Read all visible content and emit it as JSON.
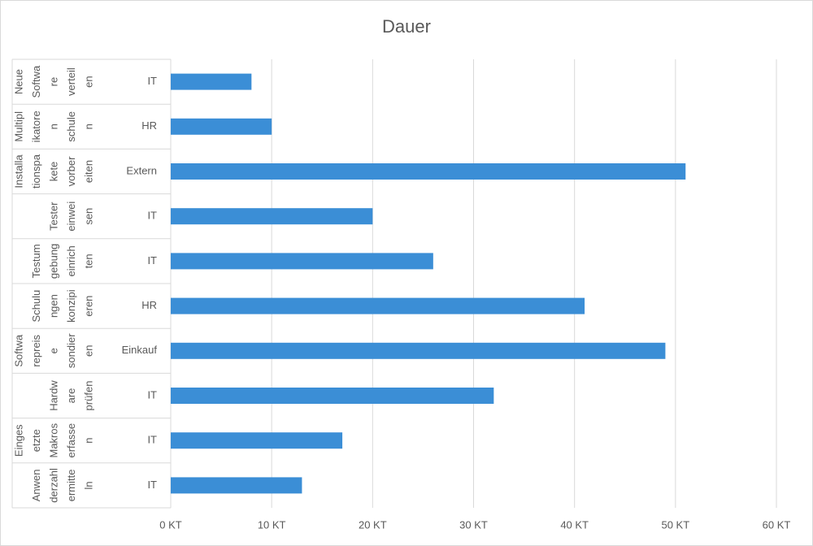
{
  "chart_data": {
    "type": "bar",
    "orientation": "horizontal",
    "title": "Dauer",
    "categories": [
      {
        "task": [
          "Neue",
          "Softwa",
          "re",
          "verteil",
          "en"
        ],
        "group": "IT"
      },
      {
        "task": [
          "Multipl",
          "ikatore",
          "n",
          "schule",
          "n"
        ],
        "group": "HR"
      },
      {
        "task": [
          "Installa",
          "tionspa",
          "kete",
          "vorber",
          "eiten"
        ],
        "group": "Extern"
      },
      {
        "task": [
          "Tester",
          "einwei",
          "sen"
        ],
        "group": "IT"
      },
      {
        "task": [
          "Testum",
          "gebung",
          "einrich",
          "ten"
        ],
        "group": "IT"
      },
      {
        "task": [
          "Schulu",
          "ngen",
          "konzipi",
          "eren"
        ],
        "group": "HR"
      },
      {
        "task": [
          "Softwa",
          "repreis",
          "e",
          "sondier",
          "en"
        ],
        "group": "Einkauf"
      },
      {
        "task": [
          "Hardw",
          "are",
          "prüfen"
        ],
        "group": "IT"
      },
      {
        "task": [
          "Einges",
          "etzte",
          "Makros",
          "erfasse",
          "n"
        ],
        "group": "IT"
      },
      {
        "task": [
          "Anwen",
          "derzahl",
          "ermitte",
          "ln"
        ],
        "group": "IT"
      }
    ],
    "values": [
      8,
      10,
      51,
      20,
      26,
      41,
      49,
      32,
      17,
      13
    ],
    "color": "#3b8ed6",
    "xlim": [
      0,
      60
    ],
    "xticks": [
      {
        "value": 0,
        "label": "0 KT"
      },
      {
        "value": 10,
        "label": "10 KT"
      },
      {
        "value": 20,
        "label": "20 KT"
      },
      {
        "value": 30,
        "label": "30 KT"
      },
      {
        "value": 40,
        "label": "40 KT"
      },
      {
        "value": 50,
        "label": "50 KT"
      },
      {
        "value": 60,
        "label": "60 KT"
      }
    ],
    "grid": true
  }
}
